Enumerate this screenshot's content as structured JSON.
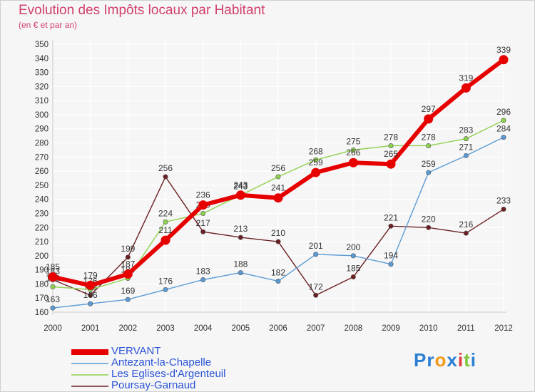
{
  "header": {
    "title": "Evolution des Impôts locaux par Habitant",
    "subtitle": "(en € et par an)"
  },
  "brand": {
    "text": "Proxiti",
    "colors": [
      "#2b7fd3",
      "#2b7fd3",
      "#f29a1c",
      "#2b7fd3",
      "#e03a3a",
      "#7fc63c",
      "#2b7fd3"
    ]
  },
  "colors": {
    "background": "#f6f6f6",
    "grid": "#ffffff",
    "axis": "#c9c9c9",
    "title": "#d0406a",
    "legend_text": "#2a53d6",
    "tick_text": "#333333",
    "value_text": "#333333"
  },
  "chart_data": {
    "type": "line",
    "title": "Evolution des Impôts locaux par Habitant",
    "subtitle": "(en € et par an)",
    "xlabel": "",
    "ylabel": "",
    "x": [
      "2000",
      "2001",
      "2002",
      "2003",
      "2004",
      "2005",
      "2006",
      "2007",
      "2008",
      "2009",
      "2010",
      "2011",
      "2012"
    ],
    "ylim": [
      160,
      350
    ],
    "yticks": [
      160,
      170,
      180,
      190,
      200,
      210,
      220,
      230,
      240,
      250,
      260,
      270,
      280,
      290,
      300,
      310,
      320,
      330,
      340,
      350
    ],
    "grid": true,
    "legend_position": "bottom-left",
    "series": [
      {
        "name": "Poursay-Garnaud",
        "color": "#6b1f22",
        "values": [
          183,
          172,
          199,
          256,
          217,
          213,
          210,
          172,
          185,
          221,
          220,
          216,
          233
        ]
      },
      {
        "name": "Antezant-la-Chapelle",
        "color": "#5b9bd5",
        "values": [
          163,
          166,
          169,
          176,
          183,
          188,
          182,
          201,
          200,
          194,
          259,
          271,
          284
        ]
      },
      {
        "name": "Les Eglises-d'Argenteuil",
        "color": "#8fd14f",
        "values": [
          178,
          176,
          184,
          224,
          230,
          243,
          256,
          268,
          275,
          278,
          278,
          283,
          296
        ]
      },
      {
        "name": "VERVANT",
        "color": "#e60000",
        "values": [
          185,
          179,
          187,
          211,
          236,
          243,
          241,
          259,
          266,
          265,
          297,
          319,
          339
        ]
      }
    ]
  }
}
